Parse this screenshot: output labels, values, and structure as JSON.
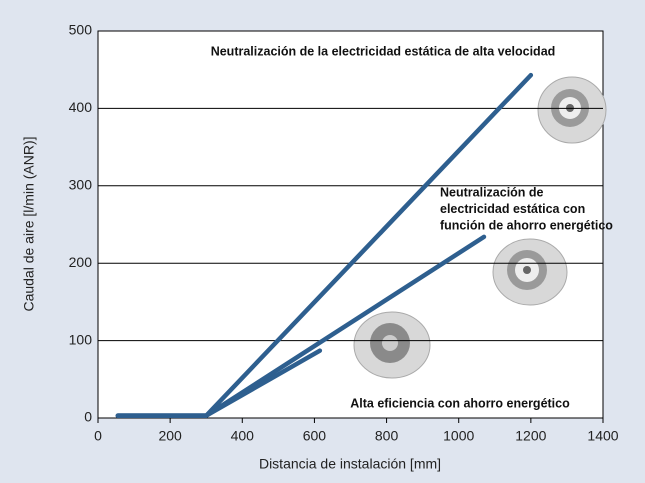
{
  "chart_data": {
    "type": "line",
    "y_label": "Caudal de aire [l/min (ANR)]",
    "x_label": "Distancia de instalación [mm]",
    "xlim": [
      0,
      1400
    ],
    "xticks": [
      0,
      200,
      400,
      600,
      800,
      1000,
      1200,
      1400
    ],
    "ylim": [
      0,
      500
    ],
    "yticks": [
      0,
      100,
      200,
      300,
      400,
      500
    ],
    "grid": true,
    "series": [
      {
        "color": "#2e5f8f",
        "x": [
          55,
          300,
          1200
        ],
        "values": [
          3,
          3,
          443
        ]
      },
      {
        "color": "#2e5f8f",
        "x": [
          55,
          300,
          1070
        ],
        "values": [
          3,
          3,
          234
        ]
      },
      {
        "color": "#2e5f8f",
        "x": [
          55,
          300,
          615
        ],
        "values": [
          3,
          3,
          87
        ]
      }
    ],
    "annotations": [
      {
        "lines": [
          "Neutralización de la electricidad estática de alta velocidad"
        ]
      },
      {
        "lines": [
          "Neutralización de",
          "electricidad estática con",
          "función de ahorro energético"
        ]
      },
      {
        "lines": [
          "Alta eficiencia con ahorro energético"
        ]
      }
    ]
  }
}
